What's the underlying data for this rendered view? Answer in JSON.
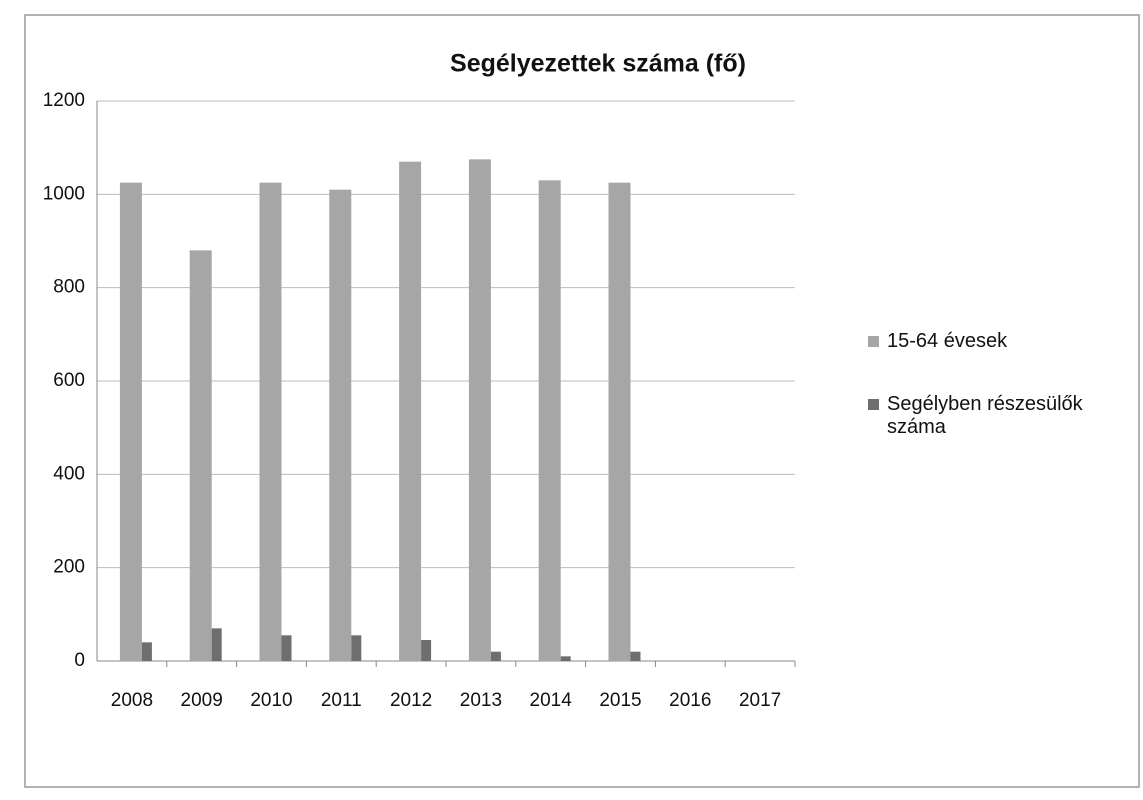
{
  "chart_data": {
    "type": "bar",
    "title": "Segélyezettek száma (fő)",
    "categories": [
      "2008",
      "2009",
      "2010",
      "2011",
      "2012",
      "2013",
      "2014",
      "2015",
      "2016",
      "2017"
    ],
    "series": [
      {
        "name": "15-64 évesek",
        "color": "#a6a6a6",
        "values": [
          1025,
          880,
          1025,
          1010,
          1070,
          1075,
          1030,
          1025,
          null,
          null
        ]
      },
      {
        "name": "Segélyben részesülők száma",
        "color": "#6e6e6e",
        "values": [
          40,
          70,
          55,
          55,
          45,
          20,
          10,
          20,
          null,
          null
        ]
      }
    ],
    "ylim": [
      0,
      1200
    ],
    "yticks": [
      0,
      200,
      400,
      600,
      800,
      1000,
      1200
    ],
    "grid": true,
    "legend": "right"
  }
}
